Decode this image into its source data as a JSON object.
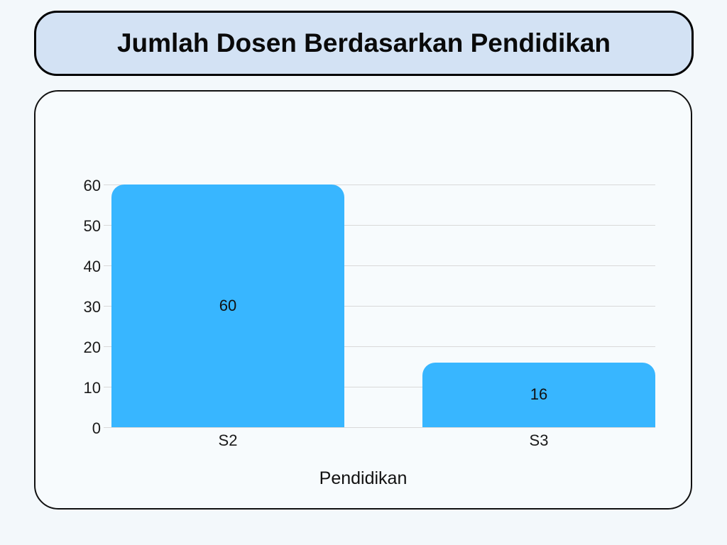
{
  "page": {
    "background": "#f3f8fb",
    "panel_fill": "#f7fbfd",
    "title_box_fill": "#d3e2f4",
    "border_color": "#000000"
  },
  "chart_data": {
    "type": "bar",
    "title": "Jumlah Dosen Berdasarkan Pendidikan",
    "categories": [
      "S2",
      "S3"
    ],
    "values": [
      60,
      16
    ],
    "data_labels": [
      "60",
      "16"
    ],
    "xlabel": "Pendidikan",
    "ylabel": "",
    "ylim": [
      0,
      60
    ],
    "yticks": [
      0,
      10,
      20,
      30,
      40,
      50,
      60
    ],
    "bar_color": "#38b6ff",
    "gridline_color": "#d9d9d9",
    "grid": "horizontal",
    "legend": "none"
  }
}
